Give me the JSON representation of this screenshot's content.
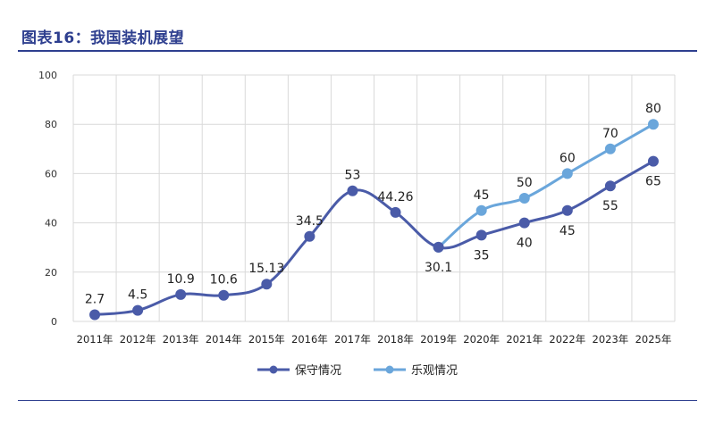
{
  "title": "图表16：我国装机展望",
  "chart_data": {
    "type": "line",
    "categories": [
      "2011年",
      "2012年",
      "2013年",
      "2014年",
      "2015年",
      "2016年",
      "2017年",
      "2018年",
      "2019年",
      "2020年",
      "2021年",
      "2022年",
      "2023年",
      "2025年"
    ],
    "ylim": [
      0,
      100
    ],
    "yticks": [
      0,
      20,
      40,
      60,
      80,
      100
    ],
    "grid": true,
    "legend": "bottom",
    "series": [
      {
        "name": "保守情况",
        "color": "#4a5ba8",
        "values": [
          2.7,
          4.5,
          10.9,
          10.6,
          15.13,
          34.5,
          53,
          44.26,
          30.1,
          35,
          40,
          45,
          55,
          65
        ],
        "labels": [
          "2.7",
          "4.5",
          "10.9",
          "10.6",
          "15.13",
          "34.5",
          "53",
          "44.26",
          "30.1",
          "35",
          "40",
          "45",
          "55",
          "65"
        ]
      },
      {
        "name": "乐观情况",
        "color": "#6aa6db",
        "values": [
          null,
          null,
          null,
          null,
          null,
          null,
          null,
          null,
          30.1,
          45,
          50,
          60,
          70,
          80
        ],
        "labels": [
          "",
          "",
          "",
          "",
          "",
          "",
          "",
          "",
          "",
          "45",
          "50",
          "60",
          "70",
          "80"
        ]
      }
    ]
  }
}
